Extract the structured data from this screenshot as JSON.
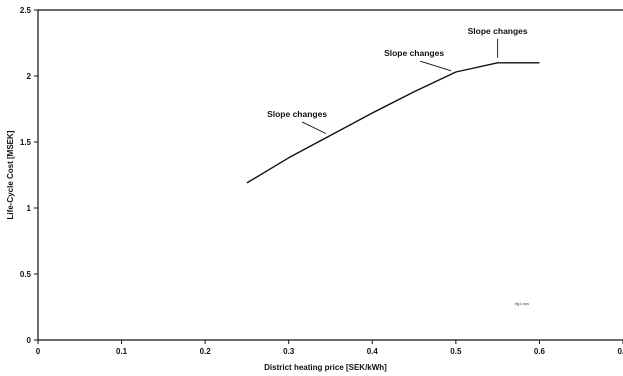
{
  "chart_data": {
    "type": "line",
    "title": "",
    "xlabel": "District heating price [SEK/kWh]",
    "ylabel": "Life-Cycle Cost [MSEK]",
    "xlim": [
      0,
      0.7
    ],
    "ylim": [
      0,
      2.5
    ],
    "xticks": [
      "0",
      "0.1",
      "0.2",
      "0.3",
      "0.4",
      "0.5",
      "0.6",
      "0.7"
    ],
    "yticks": [
      "0",
      "0.5",
      "1",
      "1.5",
      "2",
      "2.5"
    ],
    "grid": false,
    "legend": "none",
    "series": [
      {
        "x": [
          0.25,
          0.3,
          0.35,
          0.4,
          0.45,
          0.5,
          0.55,
          0.6
        ],
        "y": [
          1.19,
          1.38,
          1.55,
          1.72,
          1.88,
          2.03,
          2.1,
          2.1
        ]
      }
    ],
    "annotations": [
      {
        "text": "Slope changes",
        "x": 0.35,
        "y": 1.55,
        "label_x": 0.31,
        "label_y": 1.69
      },
      {
        "text": "Slope changes",
        "x": 0.5,
        "y": 2.03,
        "label_x": 0.45,
        "label_y": 2.15
      },
      {
        "text": "Slope changes",
        "x": 0.55,
        "y": 2.1,
        "label_x": 0.55,
        "label_y": 2.32
      }
    ],
    "note": "fig1.eps"
  },
  "colors": {
    "axis": "#111111",
    "line": "#111111",
    "background": "#ffffff"
  }
}
